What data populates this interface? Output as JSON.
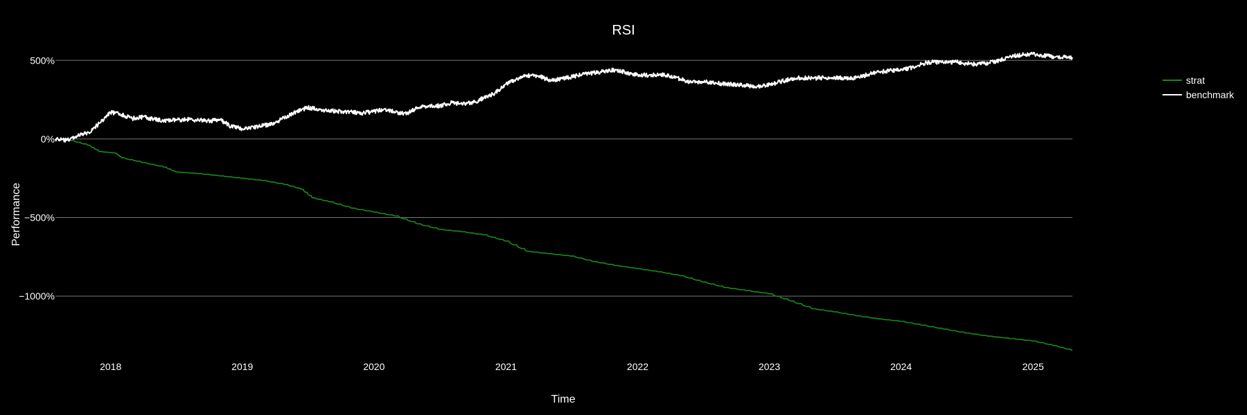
{
  "chart_data": {
    "type": "line",
    "title": "RSI",
    "xlabel": "Time",
    "ylabel": "Performance",
    "x_range": [
      "2017-08-01",
      "2025-04-20"
    ],
    "ylim": [
      -1360,
      620
    ],
    "y_ticks": [
      500,
      0,
      -500,
      -1000
    ],
    "y_tick_labels": [
      "500%",
      "0%",
      "−500%",
      "−1000%"
    ],
    "x_ticks": [
      "2018-01-01",
      "2019-01-01",
      "2020-01-01",
      "2021-01-01",
      "2022-01-01",
      "2023-01-01",
      "2024-01-01",
      "2025-01-01"
    ],
    "x_tick_labels": [
      "2018",
      "2019",
      "2020",
      "2021",
      "2022",
      "2023",
      "2024",
      "2025"
    ],
    "grid": "horizontal",
    "legend_position": "top-right",
    "series": [
      {
        "name": "strat",
        "color": "#1a8a1a",
        "points": [
          [
            "2017-08-01",
            0
          ],
          [
            "2017-09-15",
            -10
          ],
          [
            "2017-11-01",
            -40
          ],
          [
            "2017-12-01",
            -80
          ],
          [
            "2018-01-15",
            -90
          ],
          [
            "2018-02-01",
            -120
          ],
          [
            "2018-04-01",
            -150
          ],
          [
            "2018-06-01",
            -180
          ],
          [
            "2018-07-01",
            -210
          ],
          [
            "2018-09-01",
            -220
          ],
          [
            "2018-11-01",
            -235
          ],
          [
            "2019-01-01",
            -250
          ],
          [
            "2019-03-01",
            -265
          ],
          [
            "2019-05-01",
            -290
          ],
          [
            "2019-06-15",
            -320
          ],
          [
            "2019-07-15",
            -375
          ],
          [
            "2019-09-01",
            -400
          ],
          [
            "2019-11-01",
            -440
          ],
          [
            "2020-01-01",
            -465
          ],
          [
            "2020-03-01",
            -490
          ],
          [
            "2020-05-01",
            -540
          ],
          [
            "2020-07-01",
            -575
          ],
          [
            "2020-09-01",
            -590
          ],
          [
            "2020-11-01",
            -610
          ],
          [
            "2021-01-01",
            -650
          ],
          [
            "2021-03-01",
            -715
          ],
          [
            "2021-05-01",
            -730
          ],
          [
            "2021-07-01",
            -745
          ],
          [
            "2021-09-01",
            -780
          ],
          [
            "2021-11-01",
            -805
          ],
          [
            "2022-01-01",
            -825
          ],
          [
            "2022-03-01",
            -845
          ],
          [
            "2022-05-01",
            -870
          ],
          [
            "2022-07-01",
            -910
          ],
          [
            "2022-09-01",
            -945
          ],
          [
            "2022-11-01",
            -965
          ],
          [
            "2023-01-01",
            -985
          ],
          [
            "2023-03-01",
            -1030
          ],
          [
            "2023-05-01",
            -1080
          ],
          [
            "2023-07-01",
            -1100
          ],
          [
            "2023-09-01",
            -1125
          ],
          [
            "2023-11-01",
            -1145
          ],
          [
            "2024-01-01",
            -1160
          ],
          [
            "2024-03-01",
            -1185
          ],
          [
            "2024-05-01",
            -1210
          ],
          [
            "2024-07-01",
            -1235
          ],
          [
            "2024-09-01",
            -1255
          ],
          [
            "2024-11-01",
            -1270
          ],
          [
            "2025-01-01",
            -1285
          ],
          [
            "2025-03-01",
            -1315
          ],
          [
            "2025-04-20",
            -1345
          ]
        ]
      },
      {
        "name": "benchmark",
        "color": "#ffffff",
        "points": [
          [
            "2017-08-01",
            0
          ],
          [
            "2017-09-01",
            -10
          ],
          [
            "2017-10-01",
            20
          ],
          [
            "2017-11-01",
            40
          ],
          [
            "2017-12-01",
            100
          ],
          [
            "2018-01-01",
            170
          ],
          [
            "2018-02-01",
            155
          ],
          [
            "2018-03-01",
            130
          ],
          [
            "2018-04-01",
            140
          ],
          [
            "2018-05-01",
            125
          ],
          [
            "2018-06-01",
            115
          ],
          [
            "2018-07-01",
            120
          ],
          [
            "2018-08-01",
            125
          ],
          [
            "2018-09-01",
            120
          ],
          [
            "2018-10-01",
            115
          ],
          [
            "2018-11-01",
            120
          ],
          [
            "2018-12-01",
            80
          ],
          [
            "2019-01-01",
            65
          ],
          [
            "2019-02-01",
            75
          ],
          [
            "2019-03-01",
            85
          ],
          [
            "2019-04-01",
            100
          ],
          [
            "2019-05-01",
            140
          ],
          [
            "2019-06-01",
            175
          ],
          [
            "2019-07-01",
            200
          ],
          [
            "2019-08-01",
            190
          ],
          [
            "2019-09-01",
            180
          ],
          [
            "2019-10-01",
            175
          ],
          [
            "2019-11-01",
            170
          ],
          [
            "2019-12-01",
            165
          ],
          [
            "2020-01-01",
            175
          ],
          [
            "2020-02-01",
            190
          ],
          [
            "2020-03-01",
            170
          ],
          [
            "2020-04-01",
            160
          ],
          [
            "2020-05-01",
            200
          ],
          [
            "2020-06-01",
            210
          ],
          [
            "2020-07-01",
            210
          ],
          [
            "2020-08-01",
            230
          ],
          [
            "2020-09-01",
            225
          ],
          [
            "2020-10-01",
            230
          ],
          [
            "2020-11-01",
            260
          ],
          [
            "2020-12-01",
            290
          ],
          [
            "2021-01-01",
            350
          ],
          [
            "2021-02-01",
            380
          ],
          [
            "2021-03-01",
            405
          ],
          [
            "2021-04-01",
            400
          ],
          [
            "2021-05-01",
            375
          ],
          [
            "2021-06-01",
            380
          ],
          [
            "2021-07-01",
            395
          ],
          [
            "2021-08-01",
            410
          ],
          [
            "2021-09-01",
            420
          ],
          [
            "2021-10-01",
            430
          ],
          [
            "2021-11-01",
            440
          ],
          [
            "2021-12-01",
            420
          ],
          [
            "2022-01-01",
            410
          ],
          [
            "2022-02-01",
            405
          ],
          [
            "2022-03-01",
            410
          ],
          [
            "2022-04-01",
            400
          ],
          [
            "2022-05-01",
            380
          ],
          [
            "2022-06-01",
            360
          ],
          [
            "2022-07-01",
            365
          ],
          [
            "2022-08-01",
            355
          ],
          [
            "2022-09-01",
            350
          ],
          [
            "2022-10-01",
            345
          ],
          [
            "2022-11-01",
            340
          ],
          [
            "2022-12-01",
            335
          ],
          [
            "2023-01-01",
            345
          ],
          [
            "2023-02-01",
            365
          ],
          [
            "2023-03-01",
            380
          ],
          [
            "2023-04-01",
            390
          ],
          [
            "2023-05-01",
            385
          ],
          [
            "2023-06-01",
            390
          ],
          [
            "2023-07-01",
            390
          ],
          [
            "2023-08-01",
            385
          ],
          [
            "2023-09-01",
            390
          ],
          [
            "2023-10-01",
            410
          ],
          [
            "2023-11-01",
            425
          ],
          [
            "2023-12-01",
            435
          ],
          [
            "2024-01-01",
            440
          ],
          [
            "2024-02-01",
            455
          ],
          [
            "2024-03-01",
            480
          ],
          [
            "2024-04-01",
            490
          ],
          [
            "2024-05-01",
            485
          ],
          [
            "2024-06-01",
            490
          ],
          [
            "2024-07-01",
            480
          ],
          [
            "2024-08-01",
            475
          ],
          [
            "2024-09-01",
            485
          ],
          [
            "2024-10-01",
            500
          ],
          [
            "2024-11-01",
            525
          ],
          [
            "2024-12-01",
            535
          ],
          [
            "2025-01-01",
            540
          ],
          [
            "2025-02-01",
            530
          ],
          [
            "2025-03-01",
            520
          ],
          [
            "2025-04-20",
            520
          ]
        ]
      }
    ]
  }
}
